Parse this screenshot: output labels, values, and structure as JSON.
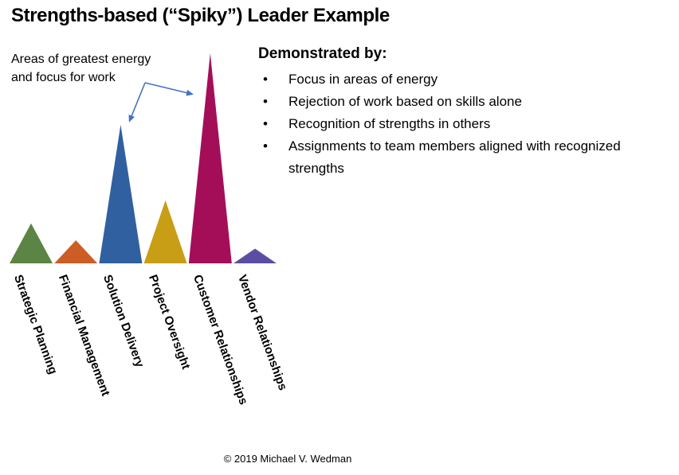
{
  "title": "Strengths-based (“Spiky”) Leader Example",
  "annotation": {
    "lines": [
      "Areas of greatest energy",
      "and focus for work"
    ]
  },
  "demonstrated": {
    "heading": "Demonstrated by:",
    "bullets": [
      "Focus in areas of energy",
      "Rejection of work based on skills alone",
      "Recognition of strengths in others",
      "Assignments to team members aligned with recognized strengths"
    ]
  },
  "footer": "© 2019 Michael V. Wedman",
  "chart_data": {
    "type": "bar",
    "style": "triangle-peaks",
    "title": "Strengths-based (“Spiky”) Leader Example",
    "categories": [
      "Strategic Planning",
      "Financial Management",
      "Solution Delivery",
      "Project Oversight",
      "Customer Relationships",
      "Vendor Relationships"
    ],
    "values": [
      1.9,
      1.1,
      6.6,
      3.0,
      10.0,
      0.7
    ],
    "value_note": "relative peak heights, tallest peak = 10; no numeric axis shown",
    "colors": [
      "#5B8544",
      "#CB5D25",
      "#30609F",
      "#C79E16",
      "#A40E59",
      "#5B4EA2"
    ],
    "highlighted_categories": [
      "Solution Delivery",
      "Customer Relationships"
    ],
    "annotation": "Areas of greatest energy and focus for work",
    "arrow_color": "#4472C4",
    "label_rotation_deg": 70,
    "legend": false,
    "gridlines": false,
    "xlabel": "",
    "ylabel": ""
  }
}
